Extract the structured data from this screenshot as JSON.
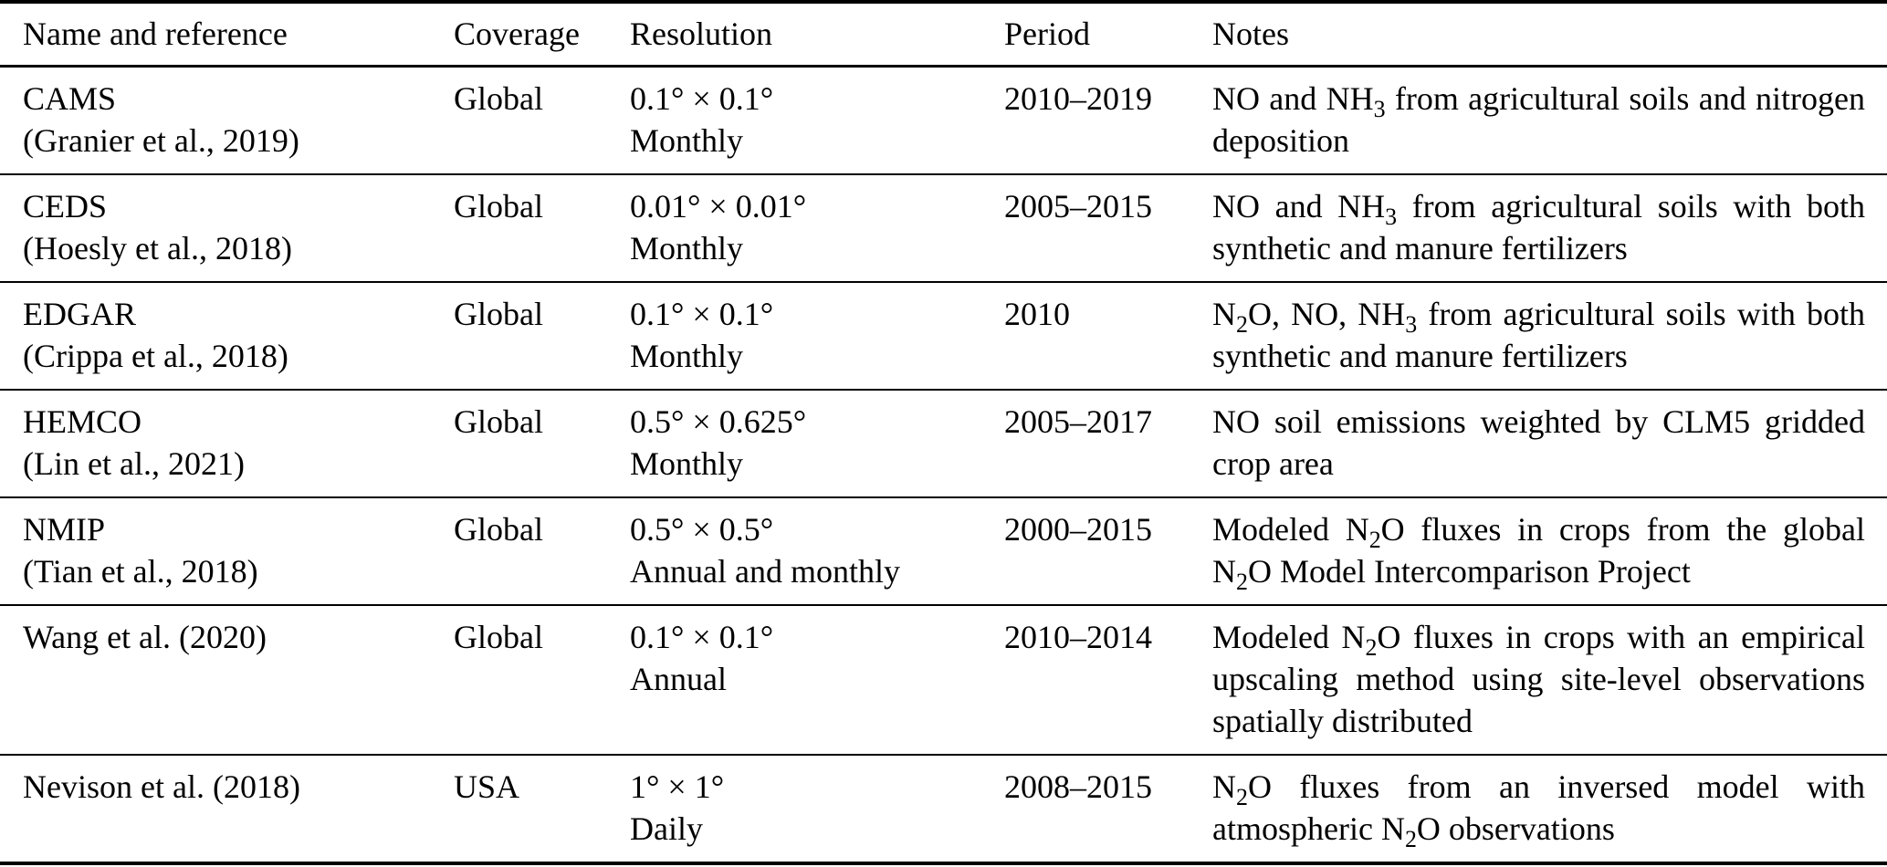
{
  "table": {
    "headers": [
      "Name and reference",
      "Coverage",
      "Resolution",
      "Period",
      "Notes"
    ],
    "rows": [
      {
        "name": "CAMS\n(Granier et al., 2019)",
        "coverage": "Global",
        "resolution": "0.1° × 0.1°\nMonthly",
        "period": "2010–2019",
        "notes": "NO and NH~3~ from agricultural soils and nitrogen deposition"
      },
      {
        "name": "CEDS\n(Hoesly et al., 2018)",
        "coverage": "Global",
        "resolution": "0.01° × 0.01°\nMonthly",
        "period": "2005–2015",
        "notes": "NO and NH~3~ from agricultural soils with both synthetic and manure fertilizers"
      },
      {
        "name": "EDGAR\n(Crippa et al., 2018)",
        "coverage": "Global",
        "resolution": "0.1° × 0.1°\nMonthly",
        "period": "2010",
        "notes": "N~2~O, NO, NH~3~ from agricultural soils with both synthetic and manure fertilizers"
      },
      {
        "name": "HEMCO\n(Lin et al., 2021)",
        "coverage": "Global",
        "resolution": "0.5° × 0.625°\nMonthly",
        "period": "2005–2017",
        "notes": "NO soil emissions weighted by CLM5 gridded crop area"
      },
      {
        "name": "NMIP\n(Tian et al., 2018)",
        "coverage": "Global",
        "resolution": "0.5° × 0.5°\nAnnual and monthly",
        "period": "2000–2015",
        "notes": "Modeled N~2~O fluxes in crops from the global N~2~O Model Intercomparison Project"
      },
      {
        "name": "Wang et al. (2020)",
        "coverage": "Global",
        "resolution": "0.1° × 0.1°\nAnnual",
        "period": "2010–2014",
        "notes": "Modeled N~2~O fluxes in crops with an empirical upscaling method using site-level observations spatially distributed"
      },
      {
        "name": "Nevison et al. (2018)",
        "coverage": "USA",
        "resolution": "1° × 1°\nDaily",
        "period": "2008–2015",
        "notes": "N~2~O fluxes from an inversed model with atmospheric N~2~O observations"
      }
    ]
  }
}
